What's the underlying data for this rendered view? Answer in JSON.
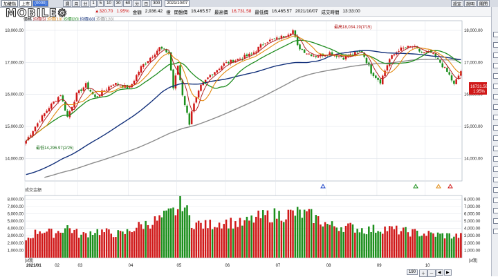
{
  "toolbar": {
    "symbol": "加權指",
    "market": "上市",
    "code": "(0000)",
    "periods": [
      "週",
      "月",
      "分",
      "1",
      "5",
      "10",
      "30",
      "60",
      "分",
      "日",
      "300"
    ],
    "date": "2021/10/07",
    "right_buttons": [
      "設定",
      "說明",
      "關閉"
    ]
  },
  "info": {
    "change": "▲320.70",
    "change_pct": "1.95%",
    "amount_label": "金額",
    "amount": "2,936.42",
    "amount_unit": "億",
    "open_label": "開盤價",
    "open": "16,465.57",
    "high_label": "最高價",
    "high": "16,731.58",
    "low_label": "最低價",
    "low": "16,465.57",
    "time": "2021/10/07",
    "time_label": "成交時間",
    "clock": "13:33:00"
  },
  "legend": {
    "price": "價格",
    "ma5": "均價[5]",
    "ma10": "均價[10]",
    "ma20": "均價[20]",
    "ma60": "均價[60]",
    "ma120": "均價[120]"
  },
  "annotations": {
    "high": "最高18,034.19(7/15)",
    "low": "最低14,296.97(2/25)",
    "last_price": "16731.58",
    "last_pct": "1.95%"
  },
  "volume_title": "成交金額",
  "unit_tag": "[x億]",
  "page_indicator": "190",
  "colors": {
    "up": "#d01818",
    "down": "#1c8f1c",
    "ma5": "#b22222",
    "ma10": "#e38a10",
    "ma20": "#1e8c1e",
    "ma60": "#12307a",
    "ma120": "#8c8c8c"
  },
  "chart_data": {
    "type": "bar",
    "price": {
      "ylim": [
        13300,
        18300
      ],
      "yticks": [
        "18,000.00",
        "17,000.00",
        "16,000.00",
        "15,000.00",
        "14,000.00"
      ],
      "tick_values": [
        18000,
        17000,
        16000,
        15000,
        14000
      ],
      "months": [
        "2021/01",
        "02",
        "03",
        "04",
        "05",
        "06",
        "07",
        "08",
        "09",
        "10"
      ],
      "month_positions": [
        0,
        13,
        23,
        45,
        66,
        87,
        109,
        131,
        153,
        174
      ],
      "n_days": 190,
      "anchors_idx": [
        0,
        4,
        10,
        15,
        18,
        22,
        26,
        30,
        38,
        45,
        50,
        54,
        58,
        62,
        64,
        66,
        68,
        70,
        71,
        72,
        76,
        80,
        86,
        92,
        98,
        104,
        110,
        116,
        118,
        122,
        126,
        132,
        138,
        146,
        150,
        154,
        158,
        162,
        168,
        172,
        176,
        180,
        184,
        186,
        189
      ],
      "anchors_close": [
        14550,
        15000,
        15600,
        16000,
        15300,
        16000,
        16300,
        15900,
        16350,
        16200,
        16850,
        17150,
        17450,
        17300,
        16200,
        16900,
        16000,
        15400,
        15100,
        15500,
        16250,
        16600,
        16950,
        17100,
        17250,
        17650,
        17750,
        18000,
        17500,
        17300,
        17200,
        17300,
        17150,
        17350,
        16700,
        16400,
        17100,
        17400,
        17500,
        17300,
        17300,
        17000,
        16600,
        16300,
        16730
      ],
      "ma60_start": 13500,
      "ma120_start": 13300
    },
    "volume": {
      "ylim": [
        0,
        8500
      ],
      "yticks": [
        "8,000.00",
        "7,000.00",
        "6,000.00",
        "5,000.00",
        "4,000.00",
        "3,000.00",
        "2,000.00",
        "1,000.00"
      ],
      "tick_values": [
        8000,
        7000,
        6000,
        5000,
        4000,
        3000,
        2000,
        1000
      ],
      "anchors_idx": [
        0,
        6,
        12,
        18,
        24,
        30,
        36,
        42,
        48,
        54,
        58,
        62,
        66,
        68,
        70,
        72,
        78,
        86,
        94,
        100,
        106,
        112,
        118,
        124,
        132,
        140,
        148,
        156,
        164,
        172,
        180,
        189
      ],
      "anchors_value": [
        2500,
        3800,
        3300,
        4200,
        3000,
        3700,
        3400,
        3200,
        4200,
        4800,
        5200,
        5900,
        6600,
        7700,
        6200,
        4800,
        4400,
        4900,
        4600,
        5400,
        5800,
        5900,
        6100,
        5700,
        4400,
        4200,
        3800,
        4000,
        3600,
        3300,
        3100,
        2936
      ]
    }
  }
}
